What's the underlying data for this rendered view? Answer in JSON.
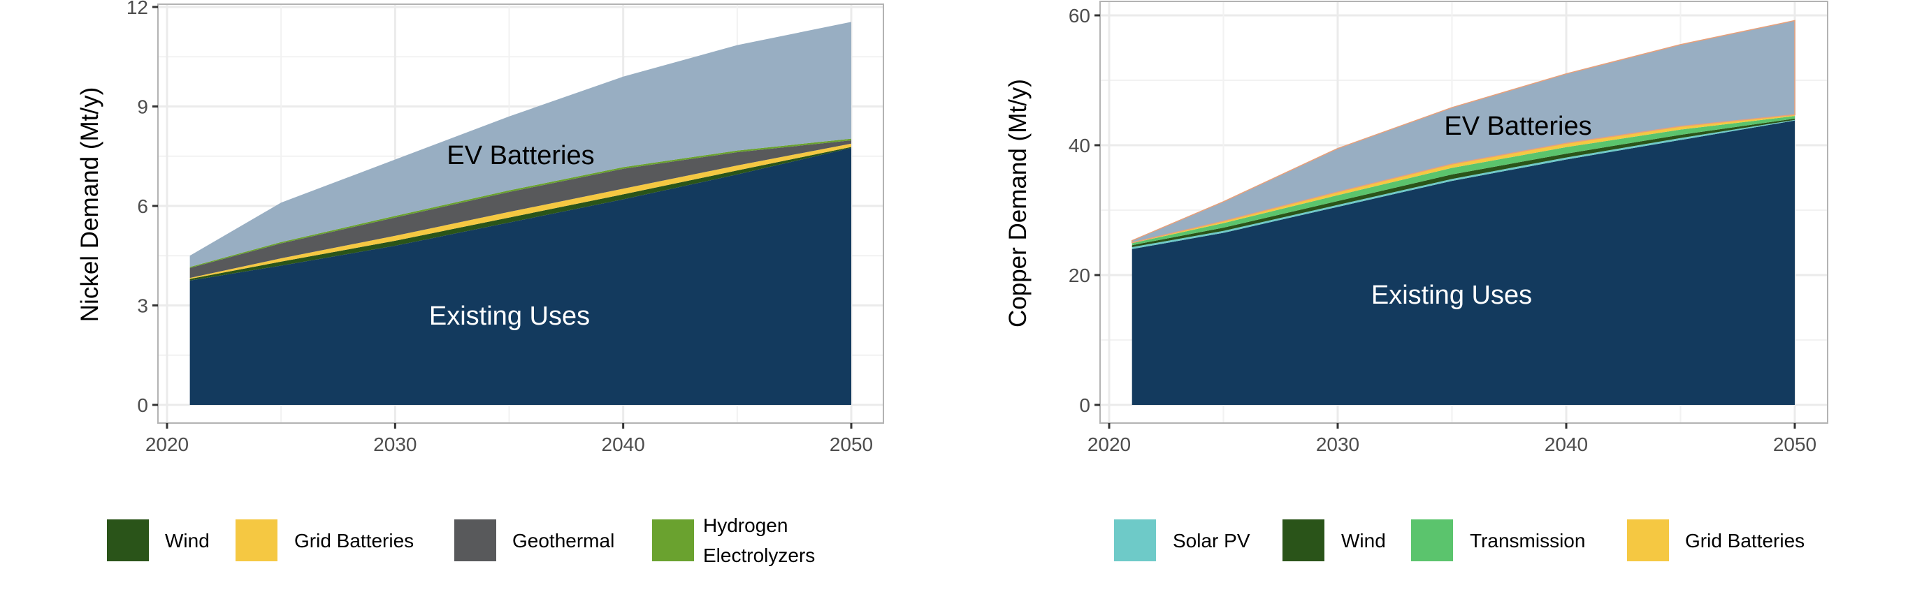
{
  "chart_data": [
    {
      "type": "area",
      "stacked": true,
      "ylabel": "Nickel Demand (Mt/y)",
      "xlabel": "",
      "xlim": [
        2020,
        2050
      ],
      "ylim": [
        0,
        12
      ],
      "xticks": [
        2020,
        2030,
        2040,
        2050
      ],
      "yticks": [
        0,
        3,
        6,
        9,
        12
      ],
      "grid": true,
      "legend_position": "bottom",
      "x": [
        2021,
        2025,
        2030,
        2035,
        2040,
        2045,
        2050
      ],
      "series": [
        {
          "name": "Existing Uses",
          "color": "#133a5e",
          "in_legend": false,
          "values": [
            3.75,
            4.2,
            4.8,
            5.5,
            6.2,
            6.95,
            7.75
          ]
        },
        {
          "name": "Wind",
          "color": "#2a5419",
          "in_legend": true,
          "values": [
            0.05,
            0.12,
            0.15,
            0.15,
            0.15,
            0.12,
            0.03
          ]
        },
        {
          "name": "Grid Batteries",
          "color": "#f5c842",
          "in_legend": true,
          "values": [
            0.03,
            0.1,
            0.15,
            0.17,
            0.17,
            0.15,
            0.1
          ]
        },
        {
          "name": "Geothermal",
          "color": "#58595b",
          "in_legend": true,
          "values": [
            0.3,
            0.45,
            0.55,
            0.6,
            0.6,
            0.4,
            0.1
          ]
        },
        {
          "name": "Hydrogen Electrolyzers",
          "legend_lines": [
            "Hydrogen",
            "Electrolyzers"
          ],
          "color": "#6aa22f",
          "in_legend": true,
          "values": [
            0.03,
            0.04,
            0.05,
            0.05,
            0.05,
            0.05,
            0.05
          ]
        },
        {
          "name": "EV Batteries",
          "color": "#98aec2",
          "in_legend": false,
          "values": [
            0.34,
            1.19,
            1.7,
            2.23,
            2.73,
            3.18,
            3.52
          ]
        }
      ],
      "annotations": [
        {
          "text": "EV Batteries",
          "color": "#000000"
        },
        {
          "text": "Existing Uses",
          "color": "#ffffff"
        }
      ]
    },
    {
      "type": "area",
      "stacked": true,
      "ylabel": "Copper Demand (Mt/y)",
      "xlabel": "",
      "xlim": [
        2020,
        2050
      ],
      "ylim": [
        0,
        60
      ],
      "xticks": [
        2020,
        2030,
        2040,
        2050
      ],
      "yticks": [
        0,
        20,
        40,
        60
      ],
      "grid": true,
      "legend_position": "bottom",
      "x": [
        2021,
        2025,
        2030,
        2035,
        2040,
        2045,
        2050
      ],
      "series": [
        {
          "name": "Existing Uses",
          "color": "#133a5e",
          "in_legend": false,
          "values": [
            24,
            26.5,
            30.5,
            34.5,
            37.8,
            40.8,
            43.8
          ]
        },
        {
          "name": "Solar PV",
          "color": "#6ecac8",
          "in_legend": true,
          "values": [
            0.3,
            0.3,
            0.3,
            0.3,
            0.3,
            0.3,
            0.1
          ]
        },
        {
          "name": "Wind",
          "color": "#2a5419",
          "in_legend": true,
          "values": [
            0.3,
            0.5,
            0.6,
            0.7,
            0.6,
            0.5,
            0.2
          ]
        },
        {
          "name": "Transmission",
          "color": "#5bc46d",
          "in_legend": true,
          "values": [
            0.3,
            0.7,
            0.9,
            1.0,
            1.0,
            0.8,
            0.4
          ]
        },
        {
          "name": "Grid Batteries",
          "color": "#f5c842",
          "in_legend": true,
          "values": [
            0.1,
            0.3,
            0.5,
            0.6,
            0.6,
            0.5,
            0.2
          ]
        },
        {
          "name": "EV Batteries",
          "color": "#98aec2",
          "in_legend": false,
          "values": [
            0.3,
            3.0,
            6.7,
            8.7,
            10.7,
            12.6,
            14.5
          ]
        }
      ],
      "annotations": [
        {
          "text": "EV Batteries",
          "color": "#000000"
        },
        {
          "text": "Existing Uses",
          "color": "#ffffff"
        }
      ]
    }
  ]
}
